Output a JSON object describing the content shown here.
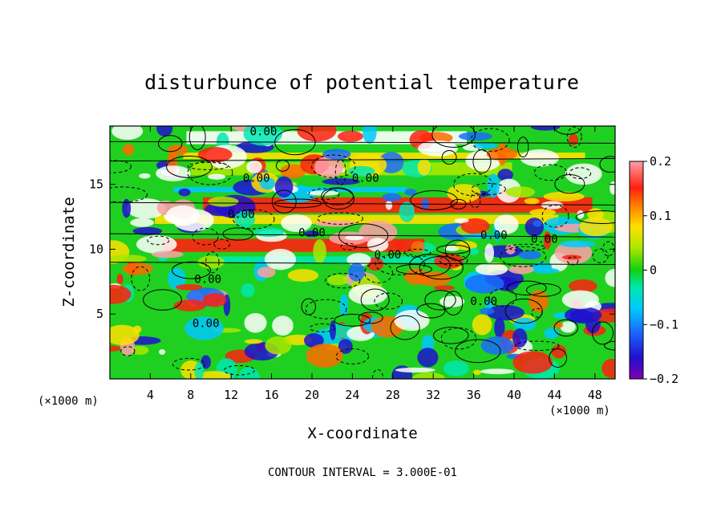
{
  "chart_data": {
    "type": "heatmap",
    "title": "disturbunce of potential temperature",
    "xlabel": "X-coordinate",
    "ylabel": "Z-coordinate",
    "x_unit": "(×1000 m)",
    "z_unit": "(×1000 m)",
    "xlim": [
      0,
      50
    ],
    "ylim": [
      0,
      19.5
    ],
    "x_ticks": [
      4,
      8,
      12,
      16,
      20,
      24,
      28,
      32,
      36,
      40,
      44,
      48
    ],
    "y_ticks": [
      5,
      10,
      15
    ],
    "colorbar": {
      "range": [
        -0.2,
        0.2
      ],
      "ticks": [
        0.2,
        0.1,
        0,
        -0.1,
        -0.2
      ],
      "tick_labels": [
        "0.2",
        "0.1",
        "0",
        "−0.1",
        "−0.2"
      ]
    },
    "contour_labels": [
      {
        "x": 14.5,
        "z": 15.2,
        "text": "0.00"
      },
      {
        "x": 25.3,
        "z": 15.2,
        "text": "0.00"
      },
      {
        "x": 15.2,
        "z": 18.8,
        "text": "0.00"
      },
      {
        "x": 13.0,
        "z": 12.4,
        "text": "0.00"
      },
      {
        "x": 20.0,
        "z": 11.0,
        "text": "0.00"
      },
      {
        "x": 27.5,
        "z": 9.3,
        "text": "0.00"
      },
      {
        "x": 38.0,
        "z": 10.8,
        "text": "0.00"
      },
      {
        "x": 43.0,
        "z": 10.5,
        "text": "0.00"
      },
      {
        "x": 9.7,
        "z": 7.4,
        "text": "0.00"
      },
      {
        "x": 37.0,
        "z": 5.7,
        "text": "0.00"
      },
      {
        "x": 9.5,
        "z": 4.0,
        "text": "0.00"
      }
    ],
    "footer": "CONTOUR INTERVAL = 3.000E-01"
  }
}
